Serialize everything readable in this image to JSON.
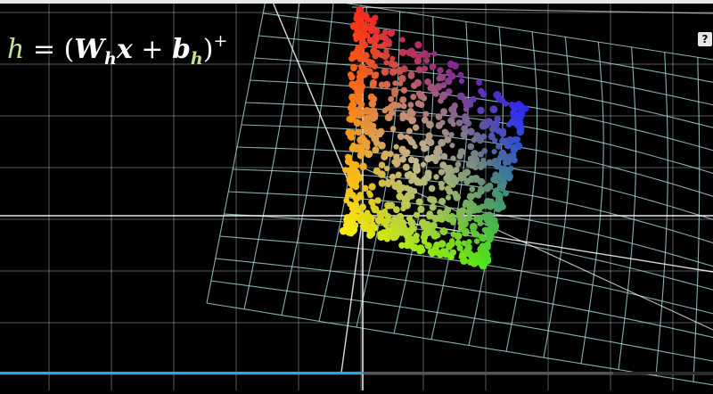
{
  "formula": {
    "h": "h",
    "eq": "=",
    "lparen": "(",
    "W": "W",
    "W_sub": "h",
    "x": "x",
    "plus": "+",
    "b": "b",
    "b_sub": "h",
    "rparen": ")",
    "sup": "+"
  },
  "help_button": {
    "label": "?"
  },
  "player": {
    "progress": 0.51,
    "loaded": 0.86
  },
  "colors": {
    "background": "#000000",
    "grid_flat": "#c8c8c8",
    "grid_warped": "#a8d8dc",
    "accent_green": "#c5e38f",
    "progress": "#22a7f0"
  },
  "scene": {
    "description_free": true,
    "point_cloud_hues": [
      "red",
      "orange",
      "yellow",
      "green",
      "cyan",
      "blue",
      "purple"
    ]
  }
}
